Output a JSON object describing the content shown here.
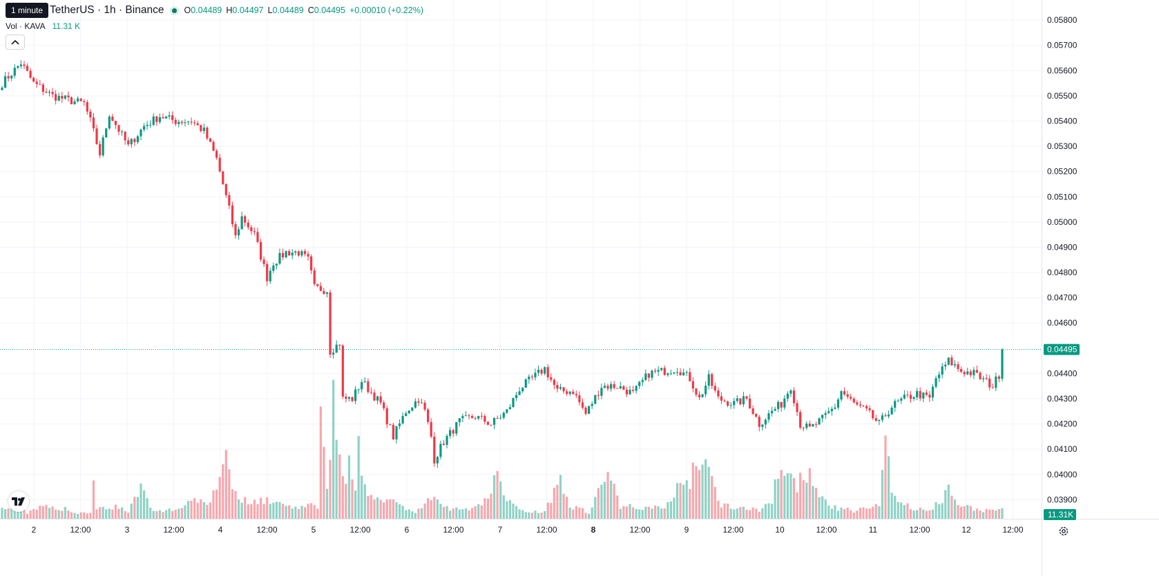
{
  "header": {
    "tooltip": "1 minute",
    "symbol": "TetherUS · 1h · Binance",
    "ohlc": [
      {
        "label": "O",
        "value": "0.04489"
      },
      {
        "label": "H",
        "value": "0.04497"
      },
      {
        "label": "L",
        "value": "0.04489"
      },
      {
        "label": "C",
        "value": "0.04495"
      }
    ],
    "change": "+0.00010 (+0.22%)",
    "volume_title": "Vol · KAVA",
    "volume_value": "11.31 K"
  },
  "colors": {
    "up": "#089981",
    "down": "#f23645",
    "vol_up": "#8fd2c6",
    "vol_down": "#f6a7ad",
    "grid": "#f0f3fa",
    "axis_text": "#131722"
  },
  "icons": {
    "collapse": "chevron-up-icon",
    "logo": "tradingview-logo-icon",
    "settings": "gear-icon"
  },
  "chart_data": {
    "type": "candlestick",
    "y_axis_ticks": [
      "0.05800",
      "0.05700",
      "0.05600",
      "0.05500",
      "0.05400",
      "0.05300",
      "0.05200",
      "0.05100",
      "0.05000",
      "0.04900",
      "0.04800",
      "0.04700",
      "0.04600",
      "0.04400",
      "0.04300",
      "0.04200",
      "0.04100",
      "0.04000",
      "0.03900"
    ],
    "ylim": [
      0.0386,
      0.05825
    ],
    "last_price": "0.04495",
    "last_volume": "11.31K",
    "x_axis_ticks": [
      {
        "label": "2",
        "bold": false
      },
      {
        "label": "12:00",
        "bold": false
      },
      {
        "label": "3",
        "bold": false
      },
      {
        "label": "12:00",
        "bold": false
      },
      {
        "label": "4",
        "bold": false
      },
      {
        "label": "12:00",
        "bold": false
      },
      {
        "label": "5",
        "bold": false
      },
      {
        "label": "12:00",
        "bold": false
      },
      {
        "label": "6",
        "bold": false
      },
      {
        "label": "12:00",
        "bold": false
      },
      {
        "label": "7",
        "bold": false
      },
      {
        "label": "12:00",
        "bold": false
      },
      {
        "label": "8",
        "bold": true
      },
      {
        "label": "12:00",
        "bold": false
      },
      {
        "label": "9",
        "bold": false
      },
      {
        "label": "12:00",
        "bold": false
      },
      {
        "label": "10",
        "bold": false
      },
      {
        "label": "12:00",
        "bold": false
      },
      {
        "label": "11",
        "bold": false
      },
      {
        "label": "12:00",
        "bold": false
      },
      {
        "label": "12",
        "bold": false
      },
      {
        "label": "12:00",
        "bold": false
      }
    ],
    "close_anchors": [
      [
        0,
        0.0555
      ],
      [
        6,
        0.0563
      ],
      [
        10,
        0.0555
      ],
      [
        16,
        0.055
      ],
      [
        22,
        0.0548
      ],
      [
        26,
        0.0547
      ],
      [
        28,
        0.054
      ],
      [
        31,
        0.0527
      ],
      [
        34,
        0.0543
      ],
      [
        40,
        0.053
      ],
      [
        45,
        0.0538
      ],
      [
        50,
        0.0542
      ],
      [
        55,
        0.054
      ],
      [
        60,
        0.054
      ],
      [
        64,
        0.0536
      ],
      [
        68,
        0.0525
      ],
      [
        72,
        0.0505
      ],
      [
        74,
        0.0494
      ],
      [
        76,
        0.0502
      ],
      [
        80,
        0.0495
      ],
      [
        84,
        0.0478
      ],
      [
        86,
        0.0484
      ],
      [
        90,
        0.0488
      ],
      [
        94,
        0.0488
      ],
      [
        97,
        0.0485
      ],
      [
        99,
        0.0474
      ],
      [
        103,
        0.0473
      ],
      [
        104,
        0.0449
      ],
      [
        107,
        0.0452
      ],
      [
        108,
        0.043
      ],
      [
        111,
        0.043
      ],
      [
        114,
        0.0437
      ],
      [
        120,
        0.0428
      ],
      [
        124,
        0.0415
      ],
      [
        128,
        0.0425
      ],
      [
        132,
        0.043
      ],
      [
        134,
        0.0425
      ],
      [
        136,
        0.0415
      ],
      [
        137,
        0.0406
      ],
      [
        140,
        0.0413
      ],
      [
        145,
        0.0421
      ],
      [
        150,
        0.0423
      ],
      [
        155,
        0.042
      ],
      [
        160,
        0.0425
      ],
      [
        164,
        0.0434
      ],
      [
        168,
        0.0438
      ],
      [
        172,
        0.0442
      ],
      [
        176,
        0.0433
      ],
      [
        181,
        0.0433
      ],
      [
        185,
        0.0424
      ],
      [
        190,
        0.0435
      ],
      [
        195,
        0.0435
      ],
      [
        200,
        0.0432
      ],
      [
        205,
        0.044
      ],
      [
        210,
        0.0441
      ],
      [
        214,
        0.0442
      ],
      [
        218,
        0.0438
      ],
      [
        221,
        0.043
      ],
      [
        224,
        0.0438
      ],
      [
        227,
        0.043
      ],
      [
        232,
        0.0428
      ],
      [
        236,
        0.043
      ],
      [
        240,
        0.042
      ],
      [
        244,
        0.0425
      ],
      [
        247,
        0.0428
      ],
      [
        250,
        0.0435
      ],
      [
        253,
        0.042
      ],
      [
        256,
        0.0418
      ],
      [
        260,
        0.0422
      ],
      [
        264,
        0.0427
      ],
      [
        266,
        0.0433
      ],
      [
        270,
        0.0428
      ],
      [
        274,
        0.0425
      ],
      [
        278,
        0.042
      ],
      [
        282,
        0.0427
      ],
      [
        286,
        0.043
      ],
      [
        290,
        0.0432
      ],
      [
        294,
        0.043
      ],
      [
        296,
        0.0438
      ],
      [
        300,
        0.0445
      ],
      [
        304,
        0.0441
      ],
      [
        308,
        0.044
      ],
      [
        314,
        0.0435
      ],
      [
        317,
        0.0442
      ]
    ],
    "volume_anchors": [
      [
        0,
        0.15
      ],
      [
        4,
        0.22
      ],
      [
        8,
        0.1
      ],
      [
        12,
        0.18
      ],
      [
        18,
        0.16
      ],
      [
        21,
        0.14
      ],
      [
        22,
        0.1
      ],
      [
        28,
        0.08
      ],
      [
        29,
        0.55
      ],
      [
        30,
        0.18
      ],
      [
        36,
        0.18
      ],
      [
        40,
        0.12
      ],
      [
        44,
        0.45
      ],
      [
        48,
        0.1
      ],
      [
        56,
        0.15
      ],
      [
        60,
        0.3
      ],
      [
        66,
        0.25
      ],
      [
        70,
        0.85
      ],
      [
        71,
        1.0
      ],
      [
        72,
        0.75
      ],
      [
        74,
        0.35
      ],
      [
        78,
        0.25
      ],
      [
        82,
        0.3
      ],
      [
        90,
        0.2
      ],
      [
        96,
        0.18
      ],
      [
        100,
        0.2
      ],
      [
        101,
        1.95
      ],
      [
        103,
        0.5
      ],
      [
        105,
        1.85
      ],
      [
        108,
        0.55
      ],
      [
        110,
        0.85
      ],
      [
        112,
        0.4
      ],
      [
        113,
        1.0
      ],
      [
        116,
        0.35
      ],
      [
        120,
        0.35
      ],
      [
        126,
        0.2
      ],
      [
        131,
        0.1
      ],
      [
        136,
        0.3
      ],
      [
        140,
        0.18
      ],
      [
        146,
        0.12
      ],
      [
        150,
        0.2
      ],
      [
        155,
        0.35
      ],
      [
        157,
        0.75
      ],
      [
        160,
        0.25
      ],
      [
        166,
        0.12
      ],
      [
        172,
        0.1
      ],
      [
        177,
        0.65
      ],
      [
        180,
        0.2
      ],
      [
        186,
        0.1
      ],
      [
        192,
        0.7
      ],
      [
        196,
        0.2
      ],
      [
        202,
        0.18
      ],
      [
        210,
        0.15
      ],
      [
        214,
        0.5
      ],
      [
        218,
        0.55
      ],
      [
        219,
        0.8
      ],
      [
        222,
        0.85
      ],
      [
        224,
        0.7
      ],
      [
        228,
        0.2
      ],
      [
        234,
        0.18
      ],
      [
        240,
        0.12
      ],
      [
        244,
        0.3
      ],
      [
        245,
        0.6
      ],
      [
        248,
        0.62
      ],
      [
        252,
        0.5
      ],
      [
        256,
        0.78
      ],
      [
        258,
        0.4
      ],
      [
        262,
        0.18
      ],
      [
        270,
        0.12
      ],
      [
        278,
        0.2
      ],
      [
        280,
        1.3
      ],
      [
        282,
        0.4
      ],
      [
        288,
        0.15
      ],
      [
        294,
        0.12
      ],
      [
        298,
        0.3
      ],
      [
        300,
        0.5
      ],
      [
        304,
        0.2
      ],
      [
        310,
        0.12
      ],
      [
        317,
        0.15
      ]
    ]
  }
}
